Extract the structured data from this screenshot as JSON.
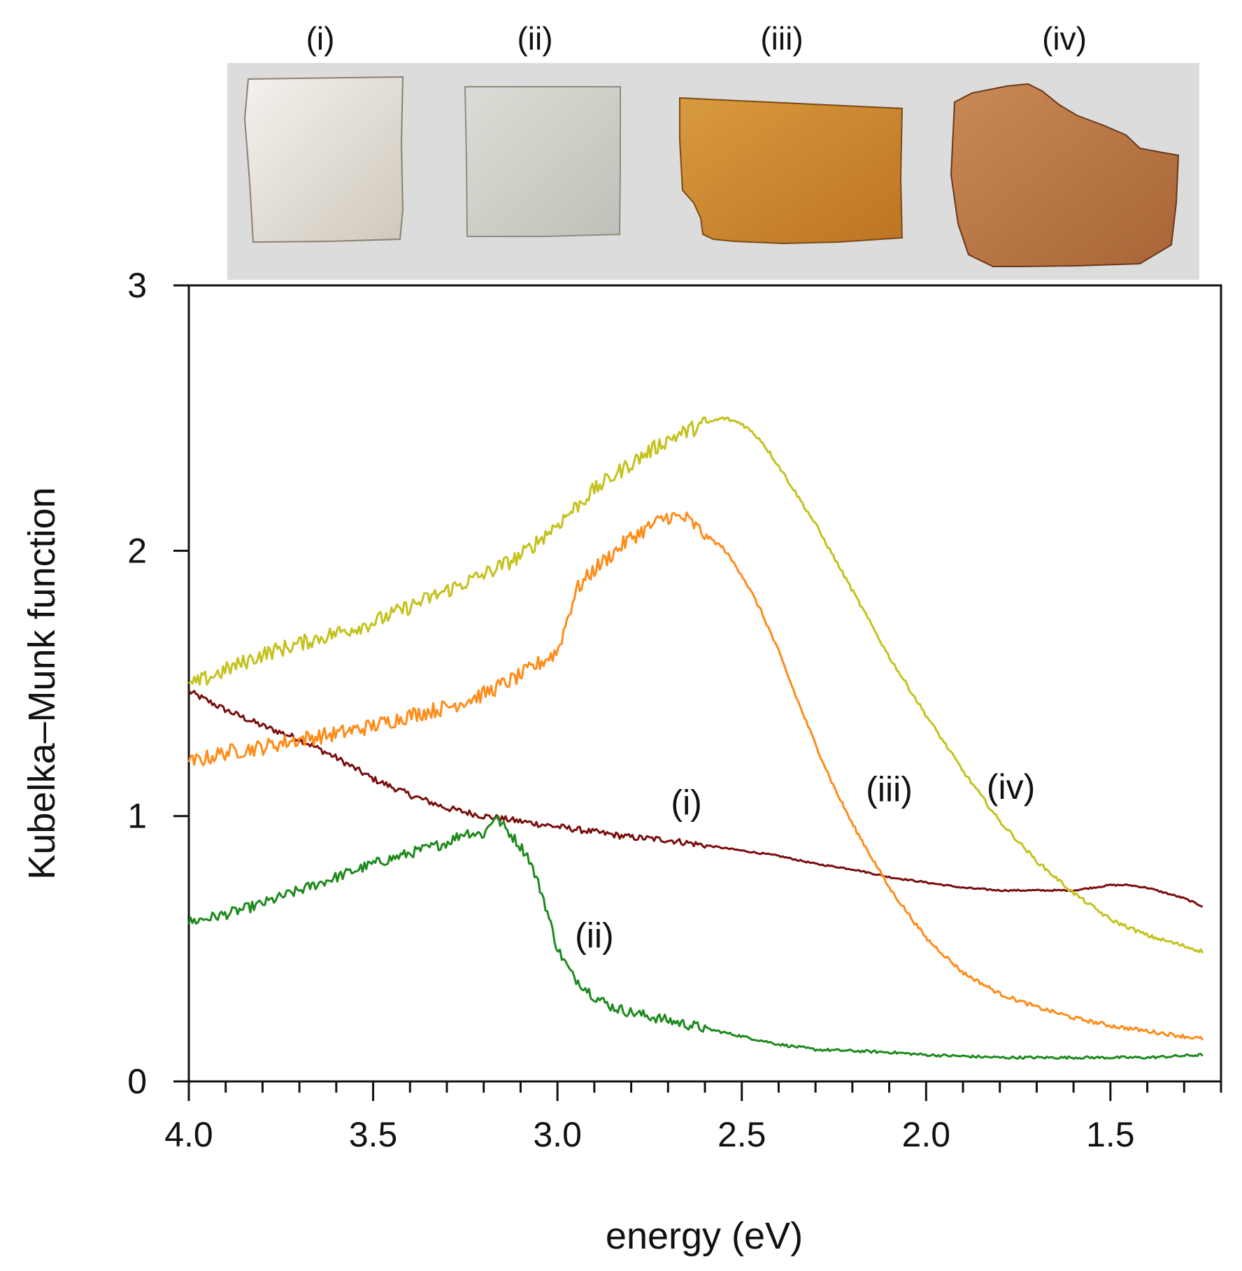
{
  "photo": {
    "background_color": "#dcdcdc",
    "samples": [
      {
        "label": "(i)",
        "fill_light": "#f4f2ee",
        "fill_dark": "#cfc8bc",
        "edge": "#8a8070"
      },
      {
        "label": "(ii)",
        "fill_light": "#dcddd6",
        "fill_dark": "#bfc1b8",
        "edge": "#8c8c84"
      },
      {
        "label": "(iii)",
        "fill_light": "#d99a3e",
        "fill_dark": "#bd7424",
        "edge": "#7a4a14"
      },
      {
        "label": "(iv)",
        "fill_light": "#c98a56",
        "fill_dark": "#a86436",
        "edge": "#6a3818"
      }
    ]
  },
  "chart_data": {
    "type": "line",
    "xlabel": "energy (eV)",
    "ylabel": "Kubelka–Munk function",
    "xlim": [
      4.0,
      1.2
    ],
    "ylim": [
      0,
      3
    ],
    "x_ticks": [
      {
        "value": 4.0,
        "label": "4.0"
      },
      {
        "value": 3.5,
        "label": "3.5"
      },
      {
        "value": 3.0,
        "label": "3.0"
      },
      {
        "value": 2.5,
        "label": "2.5"
      },
      {
        "value": 2.0,
        "label": "2.0"
      },
      {
        "value": 1.5,
        "label": "1.5"
      }
    ],
    "x_minor_step": 0.1,
    "y_ticks": [
      {
        "value": 0,
        "label": "0"
      },
      {
        "value": 1,
        "label": "1"
      },
      {
        "value": 2,
        "label": "2"
      },
      {
        "value": 3,
        "label": "3"
      }
    ],
    "x_range_data": [
      4.0,
      1.25
    ],
    "series": [
      {
        "name": "(i)",
        "color": "#7a0d0d",
        "noise": 0.012,
        "label": "(i)",
        "label_at": [
          2.65,
          1.05
        ],
        "points": [
          [
            4.0,
            1.47
          ],
          [
            3.9,
            1.4
          ],
          [
            3.8,
            1.34
          ],
          [
            3.7,
            1.29
          ],
          [
            3.6,
            1.22
          ],
          [
            3.5,
            1.14
          ],
          [
            3.4,
            1.08
          ],
          [
            3.3,
            1.03
          ],
          [
            3.2,
            1.0
          ],
          [
            3.1,
            0.98
          ],
          [
            3.0,
            0.96
          ],
          [
            2.9,
            0.94
          ],
          [
            2.8,
            0.92
          ],
          [
            2.7,
            0.91
          ],
          [
            2.6,
            0.89
          ],
          [
            2.5,
            0.87
          ],
          [
            2.4,
            0.85
          ],
          [
            2.3,
            0.82
          ],
          [
            2.2,
            0.8
          ],
          [
            2.1,
            0.77
          ],
          [
            2.0,
            0.75
          ],
          [
            1.9,
            0.73
          ],
          [
            1.8,
            0.72
          ],
          [
            1.7,
            0.72
          ],
          [
            1.6,
            0.72
          ],
          [
            1.5,
            0.74
          ],
          [
            1.45,
            0.74
          ],
          [
            1.4,
            0.73
          ],
          [
            1.35,
            0.71
          ],
          [
            1.3,
            0.69
          ],
          [
            1.25,
            0.66
          ]
        ]
      },
      {
        "name": "(ii)",
        "color": "#1e8a1e",
        "noise": 0.02,
        "label": "(ii)",
        "label_at": [
          2.9,
          0.55
        ],
        "points": [
          [
            4.0,
            0.6
          ],
          [
            3.9,
            0.63
          ],
          [
            3.8,
            0.67
          ],
          [
            3.7,
            0.72
          ],
          [
            3.6,
            0.77
          ],
          [
            3.5,
            0.82
          ],
          [
            3.4,
            0.86
          ],
          [
            3.3,
            0.9
          ],
          [
            3.25,
            0.94
          ],
          [
            3.2,
            0.93
          ],
          [
            3.17,
            1.0
          ],
          [
            3.12,
            0.92
          ],
          [
            3.08,
            0.85
          ],
          [
            3.04,
            0.7
          ],
          [
            3.0,
            0.5
          ],
          [
            2.96,
            0.4
          ],
          [
            2.9,
            0.32
          ],
          [
            2.85,
            0.28
          ],
          [
            2.8,
            0.26
          ],
          [
            2.7,
            0.23
          ],
          [
            2.6,
            0.2
          ],
          [
            2.5,
            0.17
          ],
          [
            2.4,
            0.14
          ],
          [
            2.3,
            0.12
          ],
          [
            2.1,
            0.11
          ],
          [
            2.0,
            0.1
          ],
          [
            1.8,
            0.09
          ],
          [
            1.6,
            0.09
          ],
          [
            1.4,
            0.09
          ],
          [
            1.25,
            0.1
          ]
        ]
      },
      {
        "name": "(iii)",
        "color": "#ff8c1a",
        "noise": 0.03,
        "label": "(iii)",
        "label_at": [
          2.1,
          1.1
        ],
        "points": [
          [
            4.0,
            1.2
          ],
          [
            3.9,
            1.24
          ],
          [
            3.8,
            1.26
          ],
          [
            3.7,
            1.29
          ],
          [
            3.6,
            1.31
          ],
          [
            3.5,
            1.34
          ],
          [
            3.4,
            1.38
          ],
          [
            3.3,
            1.41
          ],
          [
            3.2,
            1.46
          ],
          [
            3.1,
            1.53
          ],
          [
            3.0,
            1.62
          ],
          [
            2.95,
            1.85
          ],
          [
            2.9,
            1.93
          ],
          [
            2.8,
            2.05
          ],
          [
            2.7,
            2.13
          ],
          [
            2.65,
            2.12
          ],
          [
            2.6,
            2.06
          ],
          [
            2.55,
            2.01
          ],
          [
            2.5,
            1.91
          ],
          [
            2.45,
            1.78
          ],
          [
            2.4,
            1.62
          ],
          [
            2.35,
            1.44
          ],
          [
            2.3,
            1.27
          ],
          [
            2.25,
            1.11
          ],
          [
            2.2,
            0.97
          ],
          [
            2.15,
            0.85
          ],
          [
            2.1,
            0.73
          ],
          [
            2.0,
            0.54
          ],
          [
            1.9,
            0.41
          ],
          [
            1.8,
            0.33
          ],
          [
            1.7,
            0.28
          ],
          [
            1.6,
            0.24
          ],
          [
            1.5,
            0.21
          ],
          [
            1.4,
            0.19
          ],
          [
            1.3,
            0.17
          ],
          [
            1.25,
            0.16
          ]
        ]
      },
      {
        "name": "(iv)",
        "color": "#c4c21e",
        "noise": 0.03,
        "label": "(iv)",
        "label_at": [
          1.77,
          1.11
        ],
        "points": [
          [
            4.0,
            1.49
          ],
          [
            3.9,
            1.55
          ],
          [
            3.8,
            1.61
          ],
          [
            3.7,
            1.65
          ],
          [
            3.6,
            1.69
          ],
          [
            3.5,
            1.73
          ],
          [
            3.4,
            1.79
          ],
          [
            3.3,
            1.85
          ],
          [
            3.2,
            1.91
          ],
          [
            3.1,
            1.98
          ],
          [
            3.0,
            2.1
          ],
          [
            2.9,
            2.23
          ],
          [
            2.8,
            2.33
          ],
          [
            2.7,
            2.42
          ],
          [
            2.6,
            2.48
          ],
          [
            2.55,
            2.5
          ],
          [
            2.5,
            2.48
          ],
          [
            2.45,
            2.42
          ],
          [
            2.4,
            2.32
          ],
          [
            2.3,
            2.1
          ],
          [
            2.2,
            1.85
          ],
          [
            2.1,
            1.6
          ],
          [
            2.0,
            1.38
          ],
          [
            1.9,
            1.17
          ],
          [
            1.8,
            0.98
          ],
          [
            1.7,
            0.83
          ],
          [
            1.6,
            0.71
          ],
          [
            1.5,
            0.61
          ],
          [
            1.4,
            0.55
          ],
          [
            1.3,
            0.51
          ],
          [
            1.25,
            0.49
          ]
        ]
      }
    ]
  }
}
